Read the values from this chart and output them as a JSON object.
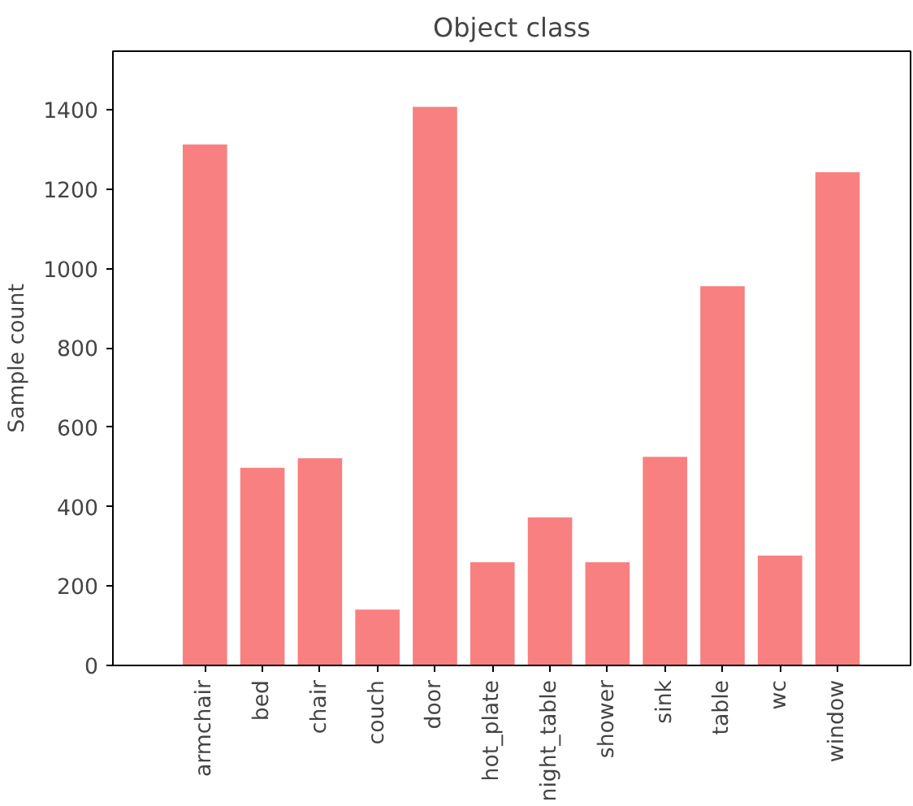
{
  "chart_data": {
    "type": "bar",
    "title": "Object class",
    "ylabel": "Sample count",
    "categories": [
      "armchair",
      "bed",
      "chair",
      "couch",
      "door",
      "hot_plate",
      "night_table",
      "shower",
      "sink",
      "table",
      "wc",
      "window"
    ],
    "values": [
      1315,
      500,
      524,
      143,
      1410,
      262,
      375,
      262,
      528,
      958,
      279,
      1245
    ],
    "color": "#f88080",
    "ylim": [
      0,
      1548
    ],
    "yticks": [
      0,
      200,
      400,
      600,
      800,
      1000,
      1200,
      1400
    ],
    "grid": false
  }
}
